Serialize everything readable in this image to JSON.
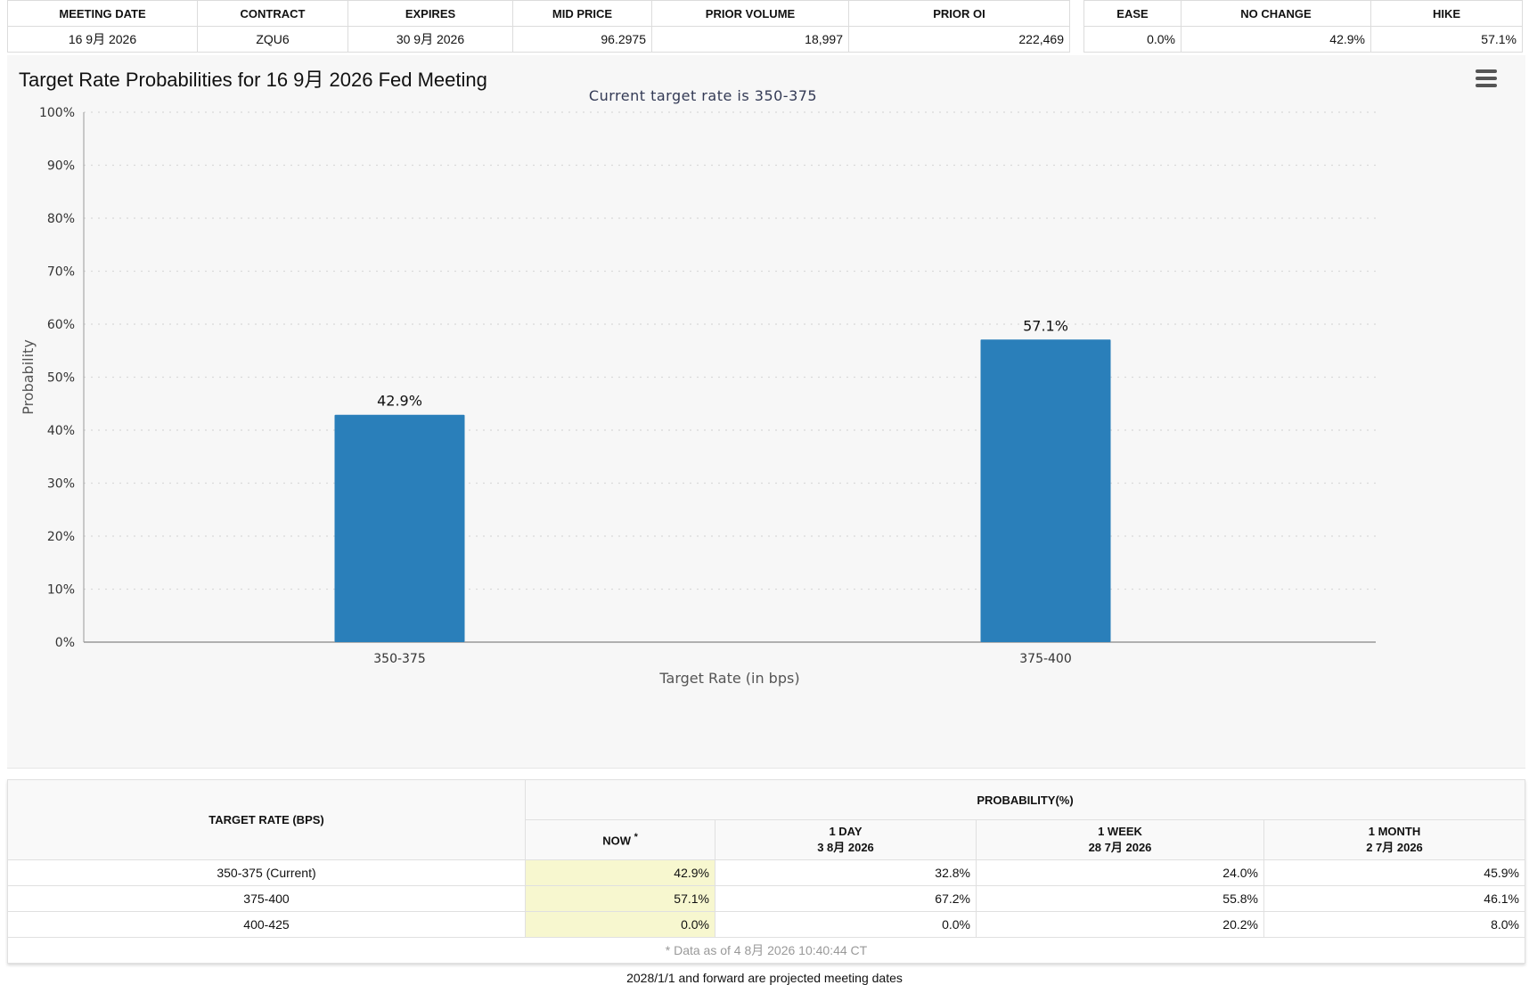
{
  "meeting": {
    "headers": [
      "MEETING DATE",
      "CONTRACT",
      "EXPIRES",
      "MID PRICE",
      "PRIOR VOLUME",
      "PRIOR OI"
    ],
    "row": [
      "16 9月 2026",
      "ZQU6",
      "30 9月 2026",
      "96.2975",
      "18,997",
      "222,469"
    ]
  },
  "outcomes": {
    "headers": [
      "EASE",
      "NO CHANGE",
      "HIKE"
    ],
    "row": [
      "0.0%",
      "42.9%",
      "57.1%"
    ]
  },
  "chart_title": "Target Rate Probabilities for 16 9月 2026 Fed Meeting",
  "chart_data": {
    "type": "bar",
    "title": "Target Rate Probabilities for 16 9月 2026 Fed Meeting",
    "subtitle": "Current target rate is 350-375",
    "xlabel": "Target Rate (in bps)",
    "ylabel": "Probability",
    "categories": [
      "350-375",
      "375-400"
    ],
    "values": [
      42.9,
      57.1
    ],
    "value_labels": [
      "42.9%",
      "57.1%"
    ],
    "ylim": [
      0,
      100
    ],
    "yticks": [
      "0%",
      "10%",
      "20%",
      "30%",
      "40%",
      "50%",
      "60%",
      "70%",
      "80%",
      "90%",
      "100%"
    ],
    "color": "#2a7fba",
    "grid": true,
    "legend": "none"
  },
  "prob_table": {
    "col_target": "TARGET RATE (BPS)",
    "col_prob": "PROBABILITY(%)",
    "sub_now": "NOW",
    "sub_now_mark": "*",
    "sub_1day": "1 DAY",
    "sub_1day_date": "3 8月 2026",
    "sub_1week": "1 WEEK",
    "sub_1week_date": "28 7月 2026",
    "sub_1month": "1 MONTH",
    "sub_1month_date": "2 7月 2026",
    "rows": [
      {
        "rate": "350-375 (Current)",
        "now": "42.9%",
        "day": "32.8%",
        "week": "24.0%",
        "month": "45.9%"
      },
      {
        "rate": "375-400",
        "now": "57.1%",
        "day": "67.2%",
        "week": "55.8%",
        "month": "46.1%"
      },
      {
        "rate": "400-425",
        "now": "0.0%",
        "day": "0.0%",
        "week": "20.2%",
        "month": "8.0%"
      }
    ],
    "note": "* Data as of 4 8月 2026 10:40:44 CT"
  },
  "footer": "2028/1/1 and forward are projected meeting dates",
  "icons": {
    "menu": "hamburger-menu-icon",
    "watermark": "q-logo-watermark"
  }
}
